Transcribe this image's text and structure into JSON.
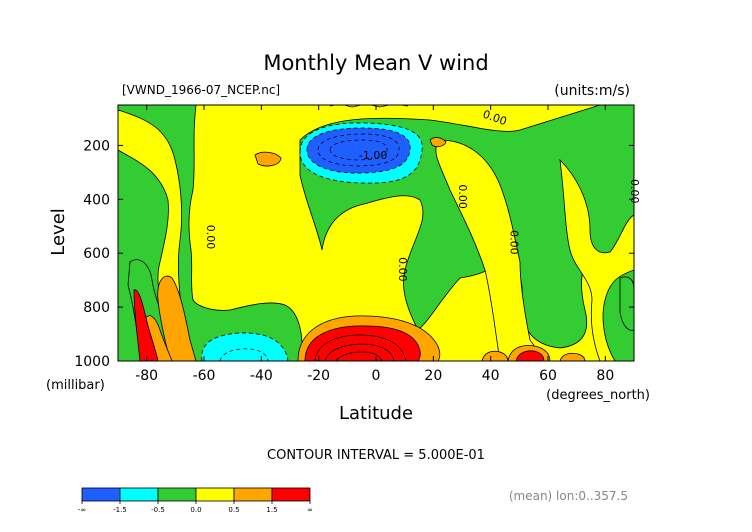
{
  "chart_data": {
    "type": "heatmap",
    "title": "Monthly Mean V wind",
    "file_label": "[VWND_1966-07_NCEP.nc]",
    "units_label": "(units:m/s)",
    "xlabel": "Latitude",
    "x_unit_label": "(degrees_north)",
    "ylabel": "Level",
    "y_unit_label": "(millibar)",
    "xlim": [
      -90,
      90
    ],
    "ylim": [
      1000,
      50
    ],
    "y_reversed": true,
    "x_ticks": [
      -80,
      -60,
      -40,
      -20,
      0,
      20,
      40,
      60,
      80
    ],
    "x_tick_labels": [
      "-80",
      "-60",
      "-40",
      "-20",
      "0",
      "20",
      "40",
      "60",
      "80"
    ],
    "y_ticks": [
      200,
      400,
      600,
      800,
      1000
    ],
    "y_tick_labels": [
      "200",
      "400",
      "600",
      "800",
      "1000"
    ],
    "contour_interval_text": "CONTOUR INTERVAL = 5.000E-01",
    "footer_text": "(mean) lon:0..357.5",
    "contour_labels": [
      {
        "text": "-1.00",
        "lat": -1,
        "level": 250
      },
      {
        "text": "0.00",
        "lat": 41,
        "level": 110
      },
      {
        "text": "0.00",
        "lat": 29,
        "level": 390
      },
      {
        "text": "0.00",
        "lat": -59,
        "level": 540
      },
      {
        "text": "0.00",
        "lat": 47,
        "level": 560
      },
      {
        "text": "0.00",
        "lat": 8,
        "level": 660
      },
      {
        "text": "0.00",
        "lat": 89,
        "level": 370
      }
    ],
    "legend": {
      "colors": [
        "#1f5fff",
        "#00ffff",
        "#33cc33",
        "#ffff00",
        "#ffa500",
        "#ff0000"
      ],
      "labels": [
        "-∞",
        "-1.5",
        "-0.5",
        "0.0",
        "0.5",
        "1.5",
        "∞"
      ]
    },
    "levels": [
      {
        "range": "< -1.5",
        "color": "#1f5fff"
      },
      {
        "range": "-1.5 to -0.5",
        "color": "#00ffff"
      },
      {
        "range": "-0.5 to 0.0",
        "color": "#33cc33"
      },
      {
        "range": "0.0 to 0.5",
        "color": "#ffff00"
      },
      {
        "range": "0.5 to 1.5",
        "color": "#ffa500"
      },
      {
        "range": "> 1.5",
        "color": "#ff0000"
      }
    ],
    "grid": false
  }
}
